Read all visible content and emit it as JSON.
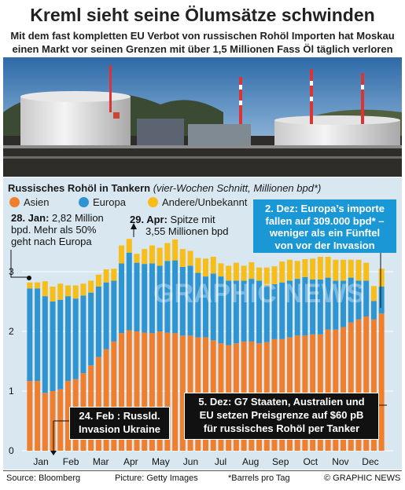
{
  "header": {
    "title": "Kreml sieht seine Ölumsätze schwinden",
    "subtitle_line1": "Mit dem fast kompletten EU Verbot von russischen Rohöl Importen hat Moskau",
    "subtitle_line2": "einen Markt vor seinen Grenzen mit über 1,5 Millionen Fass Öl täglich verloren"
  },
  "chart_title_bold": "Russisches Rohöl in Tankern",
  "chart_title_italic": "(vier-Wochen Schnitt, Millionen bpd*)",
  "colors": {
    "asien": "#f07f2d",
    "europa": "#2f94d2",
    "andere": "#f7bd19",
    "background": "#d9e7f1"
  },
  "annotations": {
    "jan_bold": "28. Jan:",
    "jan_text1": " 2,82 Million",
    "jan_text2": "bpd. Mehr als 50%",
    "jan_text3": "geht nach Europa",
    "apr_bold": "29. Apr:",
    "apr_text1": " Spitze mit",
    "apr_text2": "3,55 Millionen bpd",
    "dec2_line1": "2. Dez: Europa’s importe",
    "dec2_line2": "fallen auf 309.000 bpd* –",
    "dec2_line3": "weniger als ein Fünftel",
    "dec2_line4": "von vor der Invasion",
    "feb_line1": "24. Feb : Russld.",
    "feb_line2": "Invasion Ukraine",
    "dec5_line1": "5. Dez: G7 Staaten, Australien und",
    "dec5_line2": "EU setzen Preisgrenze auf  $60 pB",
    "dec5_line3": "für russisches Rohöl per Tanker"
  },
  "footer": {
    "source": "Source: Bloomberg",
    "picture": "Picture: Getty Images",
    "barrels": "*Barrels pro Tag",
    "copyright": "© GRAPHIC NEWS"
  },
  "watermark": "GRAPHIC NEWS",
  "chart_data": {
    "type": "bar",
    "stacked": true,
    "ylim": [
      0,
      3.6
    ],
    "yticks": [
      "0",
      "1",
      "2",
      "3"
    ],
    "month_labels": [
      "Jan",
      "Feb",
      "Mar",
      "Apr",
      "May",
      "Jun",
      "Jul",
      "Aug",
      "Sep",
      "Oct",
      "Nov",
      "Dec"
    ],
    "legend": [
      "Asien",
      "Europa",
      "Andere/Unbekannt"
    ],
    "series": [
      {
        "name": "Asien",
        "values": [
          1.17,
          1.17,
          0.97,
          1.0,
          1.03,
          1.17,
          1.2,
          1.3,
          1.43,
          1.57,
          1.7,
          1.83,
          1.97,
          2.02,
          2.0,
          1.98,
          1.97,
          2.0,
          1.98,
          1.97,
          1.93,
          1.93,
          1.9,
          1.9,
          1.85,
          1.8,
          1.77,
          1.8,
          1.83,
          1.83,
          1.8,
          1.82,
          1.87,
          1.87,
          1.9,
          1.93,
          1.93,
          1.95,
          1.95,
          2.03,
          2.03,
          2.07,
          2.15,
          2.2,
          2.25,
          2.2,
          2.3
        ]
      },
      {
        "name": "Europa",
        "values": [
          1.55,
          1.55,
          1.62,
          1.5,
          1.5,
          1.42,
          1.35,
          1.3,
          1.22,
          1.18,
          1.12,
          1.02,
          1.17,
          1.3,
          1.15,
          1.15,
          1.17,
          1.1,
          1.2,
          1.22,
          1.15,
          1.17,
          1.08,
          1.02,
          1.12,
          1.12,
          1.08,
          1.05,
          1.02,
          1.05,
          1.05,
          0.95,
          0.92,
          0.95,
          0.95,
          0.95,
          0.98,
          0.92,
          0.92,
          0.87,
          0.82,
          0.78,
          0.75,
          0.65,
          0.6,
          0.31,
          0.45
        ]
      },
      {
        "name": "Andere/Unbekannt",
        "values": [
          0.1,
          0.1,
          0.25,
          0.25,
          0.27,
          0.18,
          0.22,
          0.2,
          0.2,
          0.2,
          0.22,
          0.2,
          0.3,
          0.23,
          0.15,
          0.25,
          0.3,
          0.3,
          0.3,
          0.35,
          0.3,
          0.25,
          0.25,
          0.3,
          0.28,
          0.22,
          0.25,
          0.3,
          0.25,
          0.28,
          0.22,
          0.3,
          0.3,
          0.35,
          0.35,
          0.3,
          0.3,
          0.35,
          0.38,
          0.35,
          0.35,
          0.35,
          0.3,
          0.35,
          0.3,
          0.25,
          0.3
        ]
      }
    ]
  }
}
